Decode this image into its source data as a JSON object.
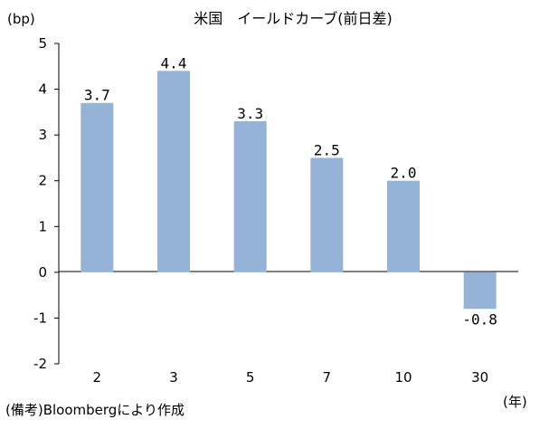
{
  "chart_data": {
    "type": "bar",
    "title": "米国　イールドカーブ(前日差)",
    "ylabel": "(bp)",
    "xlabel": "(年)",
    "categories": [
      "2",
      "3",
      "5",
      "7",
      "10",
      "30"
    ],
    "values": [
      3.7,
      4.4,
      3.3,
      2.5,
      2.0,
      -0.8
    ],
    "data_labels": [
      "3.7",
      "4.4",
      "3.3",
      "2.5",
      "2.0",
      "-0.8"
    ],
    "ylim": [
      -2,
      5
    ],
    "yticks": [
      "5",
      "4",
      "3",
      "2",
      "1",
      "0",
      "-1",
      "-2"
    ],
    "ytick_values": [
      5,
      4,
      3,
      2,
      1,
      0,
      -1,
      -2
    ],
    "grid": false,
    "bar_color": "#95b3d7",
    "source": "(備考)Bloombergにより作成"
  }
}
